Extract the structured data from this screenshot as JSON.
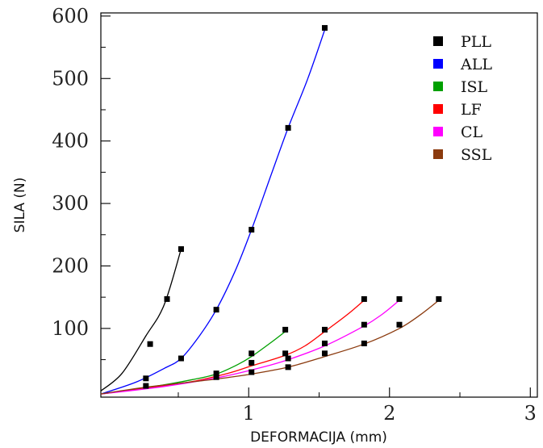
{
  "chart_data": {
    "type": "scatter",
    "title": "",
    "xlabel": "DEFORMACIJA (mm)",
    "ylabel": "SILA (N)",
    "xlim": [
      -0.05,
      3.05
    ],
    "ylim": [
      -10,
      605
    ],
    "x_ticks": [
      1,
      2,
      3
    ],
    "y_ticks": [
      100,
      200,
      300,
      400,
      500,
      600
    ],
    "x_minor_ticks": [
      0.5,
      1.5,
      2.5
    ],
    "y_minor_ticks": [
      50,
      150,
      250,
      350,
      450,
      550
    ],
    "legend_position": "top-right",
    "grid": false,
    "series": [
      {
        "name": "PLL",
        "color": "#000000",
        "points": [
          [
            0.27,
            20
          ],
          [
            0.3,
            75
          ],
          [
            0.42,
            147
          ],
          [
            0.52,
            227
          ]
        ],
        "curve": [
          [
            -0.05,
            0
          ],
          [
            0.1,
            28
          ],
          [
            0.27,
            88
          ],
          [
            0.4,
            138
          ],
          [
            0.52,
            227
          ]
        ]
      },
      {
        "name": "ALL",
        "color": "#0000ff",
        "points": [
          [
            0.52,
            52
          ],
          [
            0.77,
            130
          ],
          [
            1.02,
            258
          ],
          [
            1.28,
            421
          ],
          [
            1.54,
            581
          ]
        ],
        "curve": [
          [
            -0.05,
            -5
          ],
          [
            0.2,
            14
          ],
          [
            0.4,
            36
          ],
          [
            0.52,
            52
          ],
          [
            0.65,
            88
          ],
          [
            0.77,
            130
          ],
          [
            0.9,
            190
          ],
          [
            1.02,
            258
          ],
          [
            1.15,
            340
          ],
          [
            1.28,
            421
          ],
          [
            1.42,
            500
          ],
          [
            1.54,
            578
          ]
        ]
      },
      {
        "name": "ISL",
        "color": "#00a000",
        "points": [
          [
            0.77,
            28
          ],
          [
            1.02,
            60
          ],
          [
            1.26,
            98
          ]
        ],
        "curve": [
          [
            -0.05,
            -5
          ],
          [
            0.3,
            6
          ],
          [
            0.6,
            18
          ],
          [
            0.77,
            27
          ],
          [
            0.92,
            42
          ],
          [
            1.02,
            55
          ],
          [
            1.15,
            76
          ],
          [
            1.26,
            95
          ]
        ]
      },
      {
        "name": "LF",
        "color": "#ff0000",
        "points": [
          [
            1.02,
            45
          ],
          [
            1.26,
            60
          ],
          [
            1.54,
            98
          ],
          [
            1.82,
            147
          ]
        ],
        "curve": [
          [
            -0.05,
            -5
          ],
          [
            0.3,
            5
          ],
          [
            0.6,
            15
          ],
          [
            0.85,
            28
          ],
          [
            1.02,
            40
          ],
          [
            1.26,
            57
          ],
          [
            1.4,
            72
          ],
          [
            1.54,
            95
          ],
          [
            1.7,
            122
          ],
          [
            1.82,
            145
          ]
        ]
      },
      {
        "name": "CL",
        "color": "#ff00ff",
        "points": [
          [
            1.28,
            52
          ],
          [
            1.54,
            76
          ],
          [
            1.82,
            106
          ],
          [
            2.07,
            147
          ]
        ],
        "curve": [
          [
            -0.05,
            -5
          ],
          [
            0.4,
            7
          ],
          [
            0.8,
            22
          ],
          [
            1.1,
            38
          ],
          [
            1.28,
            50
          ],
          [
            1.54,
            72
          ],
          [
            1.82,
            104
          ],
          [
            1.95,
            123
          ],
          [
            2.07,
            145
          ]
        ]
      },
      {
        "name": "SSL",
        "color": "#8b3a0e",
        "points": [
          [
            0.27,
            8
          ],
          [
            0.77,
            22
          ],
          [
            1.02,
            30
          ],
          [
            1.28,
            38
          ],
          [
            1.54,
            60
          ],
          [
            1.82,
            76
          ],
          [
            2.07,
            106
          ],
          [
            2.35,
            147
          ]
        ],
        "curve": [
          [
            -0.05,
            -5
          ],
          [
            0.27,
            6
          ],
          [
            0.77,
            19
          ],
          [
            1.02,
            27
          ],
          [
            1.28,
            38
          ],
          [
            1.54,
            55
          ],
          [
            1.82,
            75
          ],
          [
            2.07,
            100
          ],
          [
            2.22,
            122
          ],
          [
            2.35,
            145
          ]
        ]
      }
    ]
  }
}
